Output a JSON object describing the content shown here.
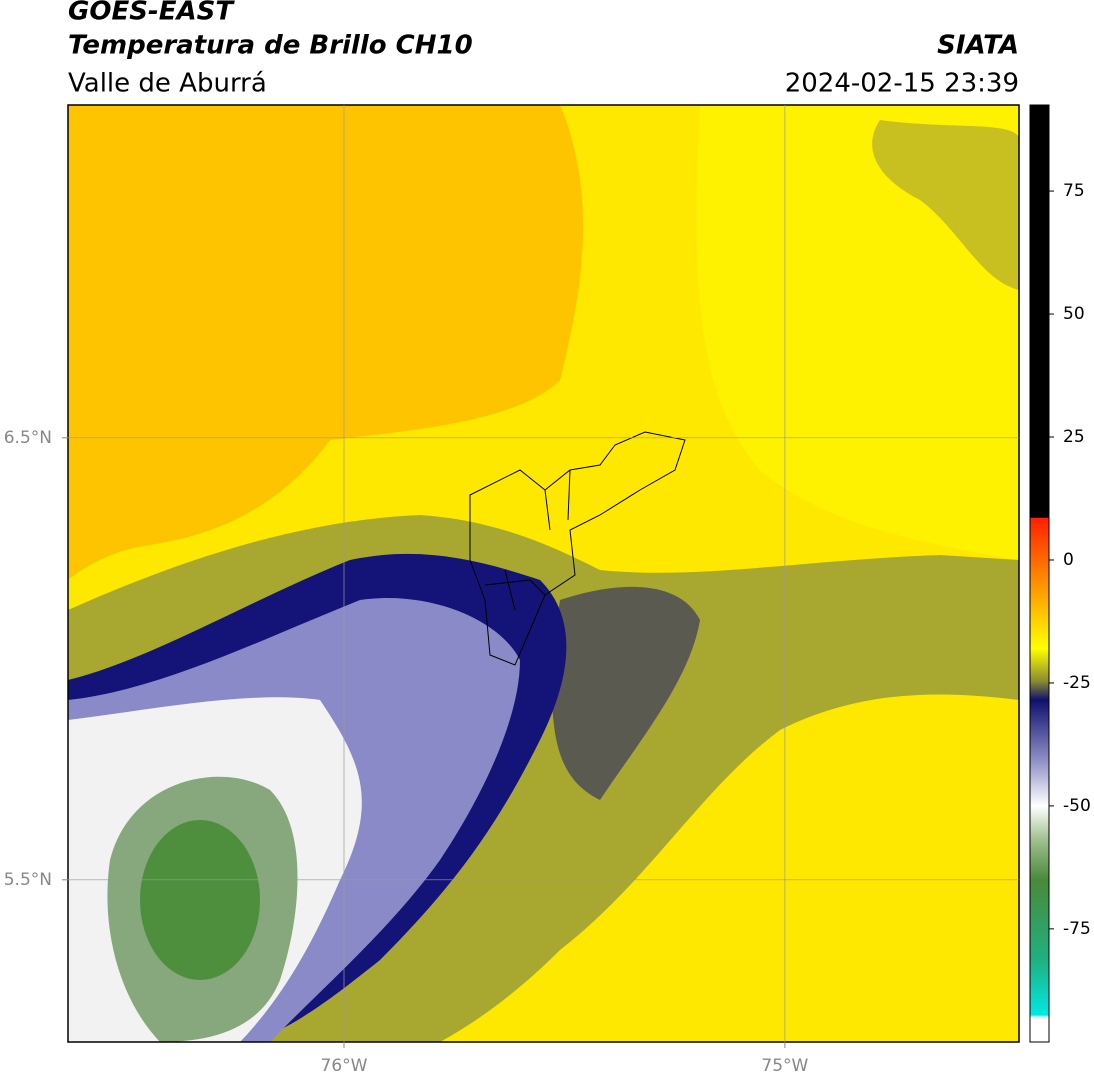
{
  "header": {
    "title": "GOES-EAST",
    "subtitle": "Temperatura de Brillo CH10",
    "region": "Valle de Aburrá",
    "source": "SIATA",
    "datetime": "2024-02-15 23:39"
  },
  "map": {
    "xlim": [
      -76.626,
      -74.469
    ],
    "ylim": [
      5.133,
      7.253
    ],
    "xticks": [
      {
        "value": -76,
        "label": "76°W"
      },
      {
        "value": -75,
        "label": "75°W"
      }
    ],
    "yticks": [
      {
        "value": 6.5,
        "label": "6.5°N"
      },
      {
        "value": 5.5,
        "label": "5.5°N"
      }
    ],
    "grid": true
  },
  "colorbar": {
    "clim": [
      -98,
      92.5
    ],
    "ticks": [
      75,
      50,
      25,
      0,
      -25,
      -50,
      -75
    ]
  }
}
